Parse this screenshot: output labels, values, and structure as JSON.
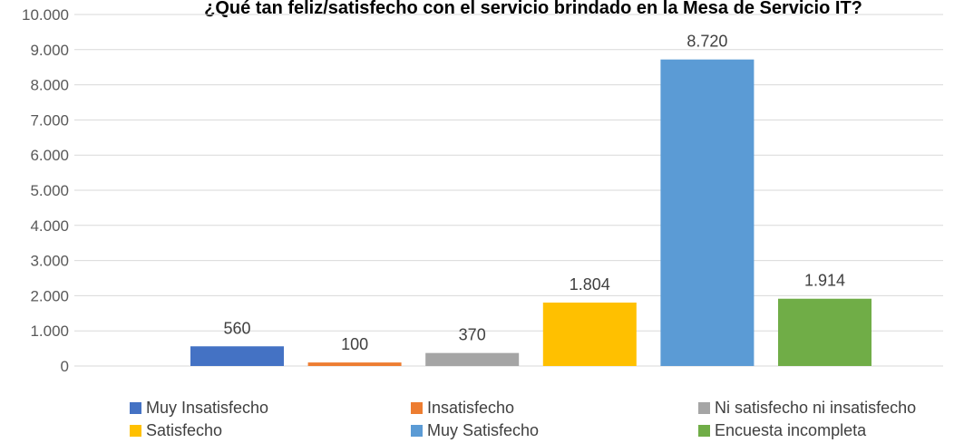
{
  "chart_data": {
    "type": "bar",
    "title": "¿Qué tan feliz/satisfecho con el servicio brindado en la Mesa de Servicio IT?",
    "categories": [
      "Muy Insatisfecho",
      "Insatisfecho",
      "Ni satisfecho ni insatisfecho",
      "Satisfecho",
      "Muy Satisfecho",
      "Encuesta incompleta"
    ],
    "values": [
      560,
      100,
      370,
      1804,
      8720,
      1914
    ],
    "value_labels": [
      "560",
      "100",
      "370",
      "1.804",
      "8.720",
      "1.914"
    ],
    "colors": [
      "#4472C4",
      "#ED7D31",
      "#A5A5A5",
      "#FFC000",
      "#5B9BD5",
      "#70AD47"
    ],
    "ylim": [
      0,
      10000
    ],
    "yticks": [
      0,
      1000,
      2000,
      3000,
      4000,
      5000,
      6000,
      7000,
      8000,
      9000,
      10000
    ],
    "ytick_labels": [
      "0",
      "1.000",
      "2.000",
      "3.000",
      "4.000",
      "5.000",
      "6.000",
      "7.000",
      "8.000",
      "9.000",
      "10.000"
    ],
    "grid": true,
    "legend_position": "bottom",
    "xlabel": "",
    "ylabel": ""
  }
}
